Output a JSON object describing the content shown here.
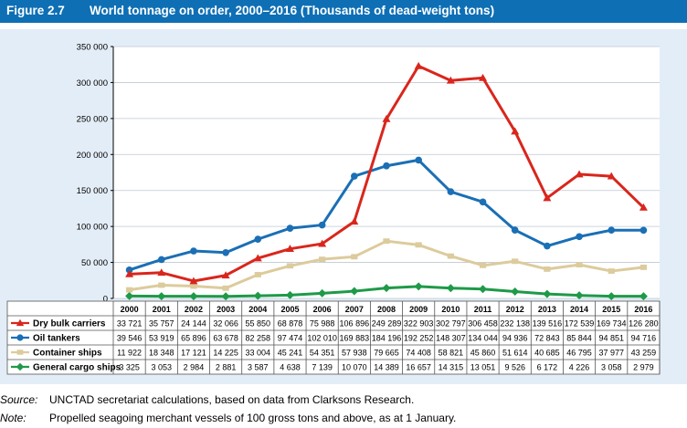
{
  "figure": {
    "number": "Figure 2.7",
    "title": "World tonnage on order, 2000–2016 (Thousands of dead-weight tons)"
  },
  "chart_data": {
    "type": "line",
    "title": "World tonnage on order, 2000–2016 (Thousands of dead-weight tons)",
    "categories": [
      "2000",
      "2001",
      "2002",
      "2003",
      "2004",
      "2005",
      "2006",
      "2007",
      "2008",
      "2009",
      "2010",
      "2011",
      "2012",
      "2013",
      "2014",
      "2015",
      "2016"
    ],
    "ylim": [
      0,
      350000
    ],
    "yticks": [
      0,
      50000,
      100000,
      150000,
      200000,
      250000,
      300000,
      350000
    ],
    "ytick_labels": [
      "0",
      "50 000",
      "100 000",
      "150 000",
      "200 000",
      "250 000",
      "300 000",
      "350 000"
    ],
    "grid": true,
    "legend": "data table below chart",
    "series": [
      {
        "name": "Dry bulk carriers",
        "color": "#d9261c",
        "marker": "triangle",
        "values": [
          33721,
          35757,
          24144,
          32066,
          55850,
          68878,
          75988,
          106896,
          249289,
          322903,
          302797,
          306458,
          232138,
          139516,
          172539,
          169734,
          126280
        ],
        "labels": [
          "33 721",
          "35 757",
          "24 144",
          "32 066",
          "55 850",
          "68 878",
          "75 988",
          "106 896",
          "249 289",
          "322 903",
          "302 797",
          "306 458",
          "232 138",
          "139 516",
          "172 539",
          "169 734",
          "126 280"
        ]
      },
      {
        "name": "Oil tankers",
        "color": "#1a6fb5",
        "marker": "circle",
        "values": [
          39546,
          53919,
          65896,
          63678,
          82258,
          97474,
          102010,
          169883,
          184196,
          192252,
          148307,
          134044,
          94936,
          72843,
          85844,
          94851,
          94716
        ],
        "labels": [
          "39 546",
          "53 919",
          "65 896",
          "63 678",
          "82 258",
          "97 474",
          "102 010",
          "169 883",
          "184 196",
          "192 252",
          "148 307",
          "134 044",
          "94 936",
          "72 843",
          "85 844",
          "94 851",
          "94 716"
        ]
      },
      {
        "name": "Container ships",
        "color": "#dccb9c",
        "marker": "square",
        "values": [
          11922,
          18348,
          17121,
          14225,
          33004,
          45241,
          54351,
          57938,
          79665,
          74408,
          58821,
          45860,
          51614,
          40685,
          46795,
          37977,
          43259
        ],
        "labels": [
          "11 922",
          "18 348",
          "17 121",
          "14 225",
          "33 004",
          "45 241",
          "54 351",
          "57 938",
          "79 665",
          "74 408",
          "58 821",
          "45 860",
          "51 614",
          "40 685",
          "46 795",
          "37 977",
          "43 259"
        ]
      },
      {
        "name": "General cargo ships",
        "color": "#1e9a48",
        "marker": "diamond",
        "values": [
          3325,
          3053,
          2984,
          2881,
          3587,
          4638,
          7139,
          10070,
          14389,
          16657,
          14315,
          13051,
          9526,
          6172,
          4226,
          3058,
          2979
        ],
        "labels": [
          "3 325",
          "3 053",
          "2 984",
          "2 881",
          "3 587",
          "4 638",
          "7 139",
          "10 070",
          "14 389",
          "16 657",
          "14 315",
          "13 051",
          "9 526",
          "6 172",
          "4 226",
          "3 058",
          "2 979"
        ]
      }
    ]
  },
  "notes": {
    "source_key": "Source:",
    "source_text": "UNCTAD secretariat calculations, based on data from Clarksons Research.",
    "note_key": "Note:",
    "note_text": "Propelled seagoing merchant vessels of 100 gross tons and above, as at 1 January."
  }
}
